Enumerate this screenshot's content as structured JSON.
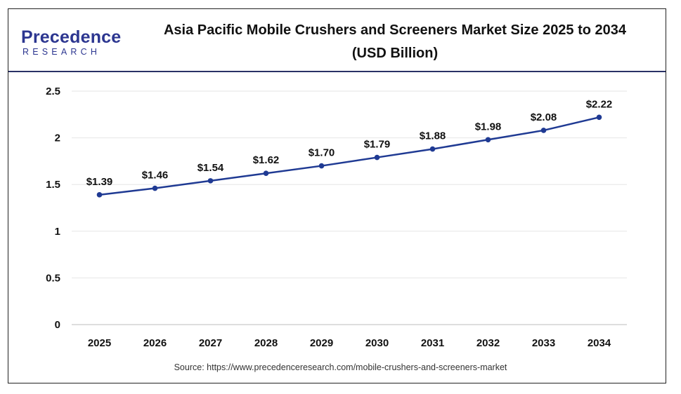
{
  "logo": {
    "main": "Precedence",
    "sub": "RESEARCH"
  },
  "title_line1": "Asia Pacific Mobile Crushers and Screeners Market Size 2025 to 2034",
  "title_line2": "(USD Billion)",
  "source": "Source: https://www.precedenceresearch.com/mobile-crushers-and-screeners-market",
  "colors": {
    "line": "#1f3a93",
    "brand": "#2c3690",
    "grid": "#e6e6e6"
  },
  "chart_data": {
    "type": "line",
    "title": "Asia Pacific Mobile Crushers and Screeners Market Size 2025 to 2034 (USD Billion)",
    "categories": [
      "2025",
      "2026",
      "2027",
      "2028",
      "2029",
      "2030",
      "2031",
      "2032",
      "2033",
      "2034"
    ],
    "values": [
      1.39,
      1.46,
      1.54,
      1.62,
      1.7,
      1.79,
      1.88,
      1.98,
      2.08,
      2.22
    ],
    "data_labels": [
      "$1.39",
      "$1.46",
      "$1.54",
      "$1.62",
      "$1.70",
      "$1.79",
      "$1.88",
      "$1.98",
      "$2.08",
      "$2.22"
    ],
    "yticks": [
      "0",
      "0.5",
      "1",
      "1.5",
      "2",
      "2.5"
    ],
    "ytick_values": [
      0,
      0.5,
      1,
      1.5,
      2,
      2.5
    ],
    "ylim": [
      0,
      2.5
    ],
    "xlabel": "",
    "ylabel": "",
    "grid": true,
    "legend": "none"
  }
}
